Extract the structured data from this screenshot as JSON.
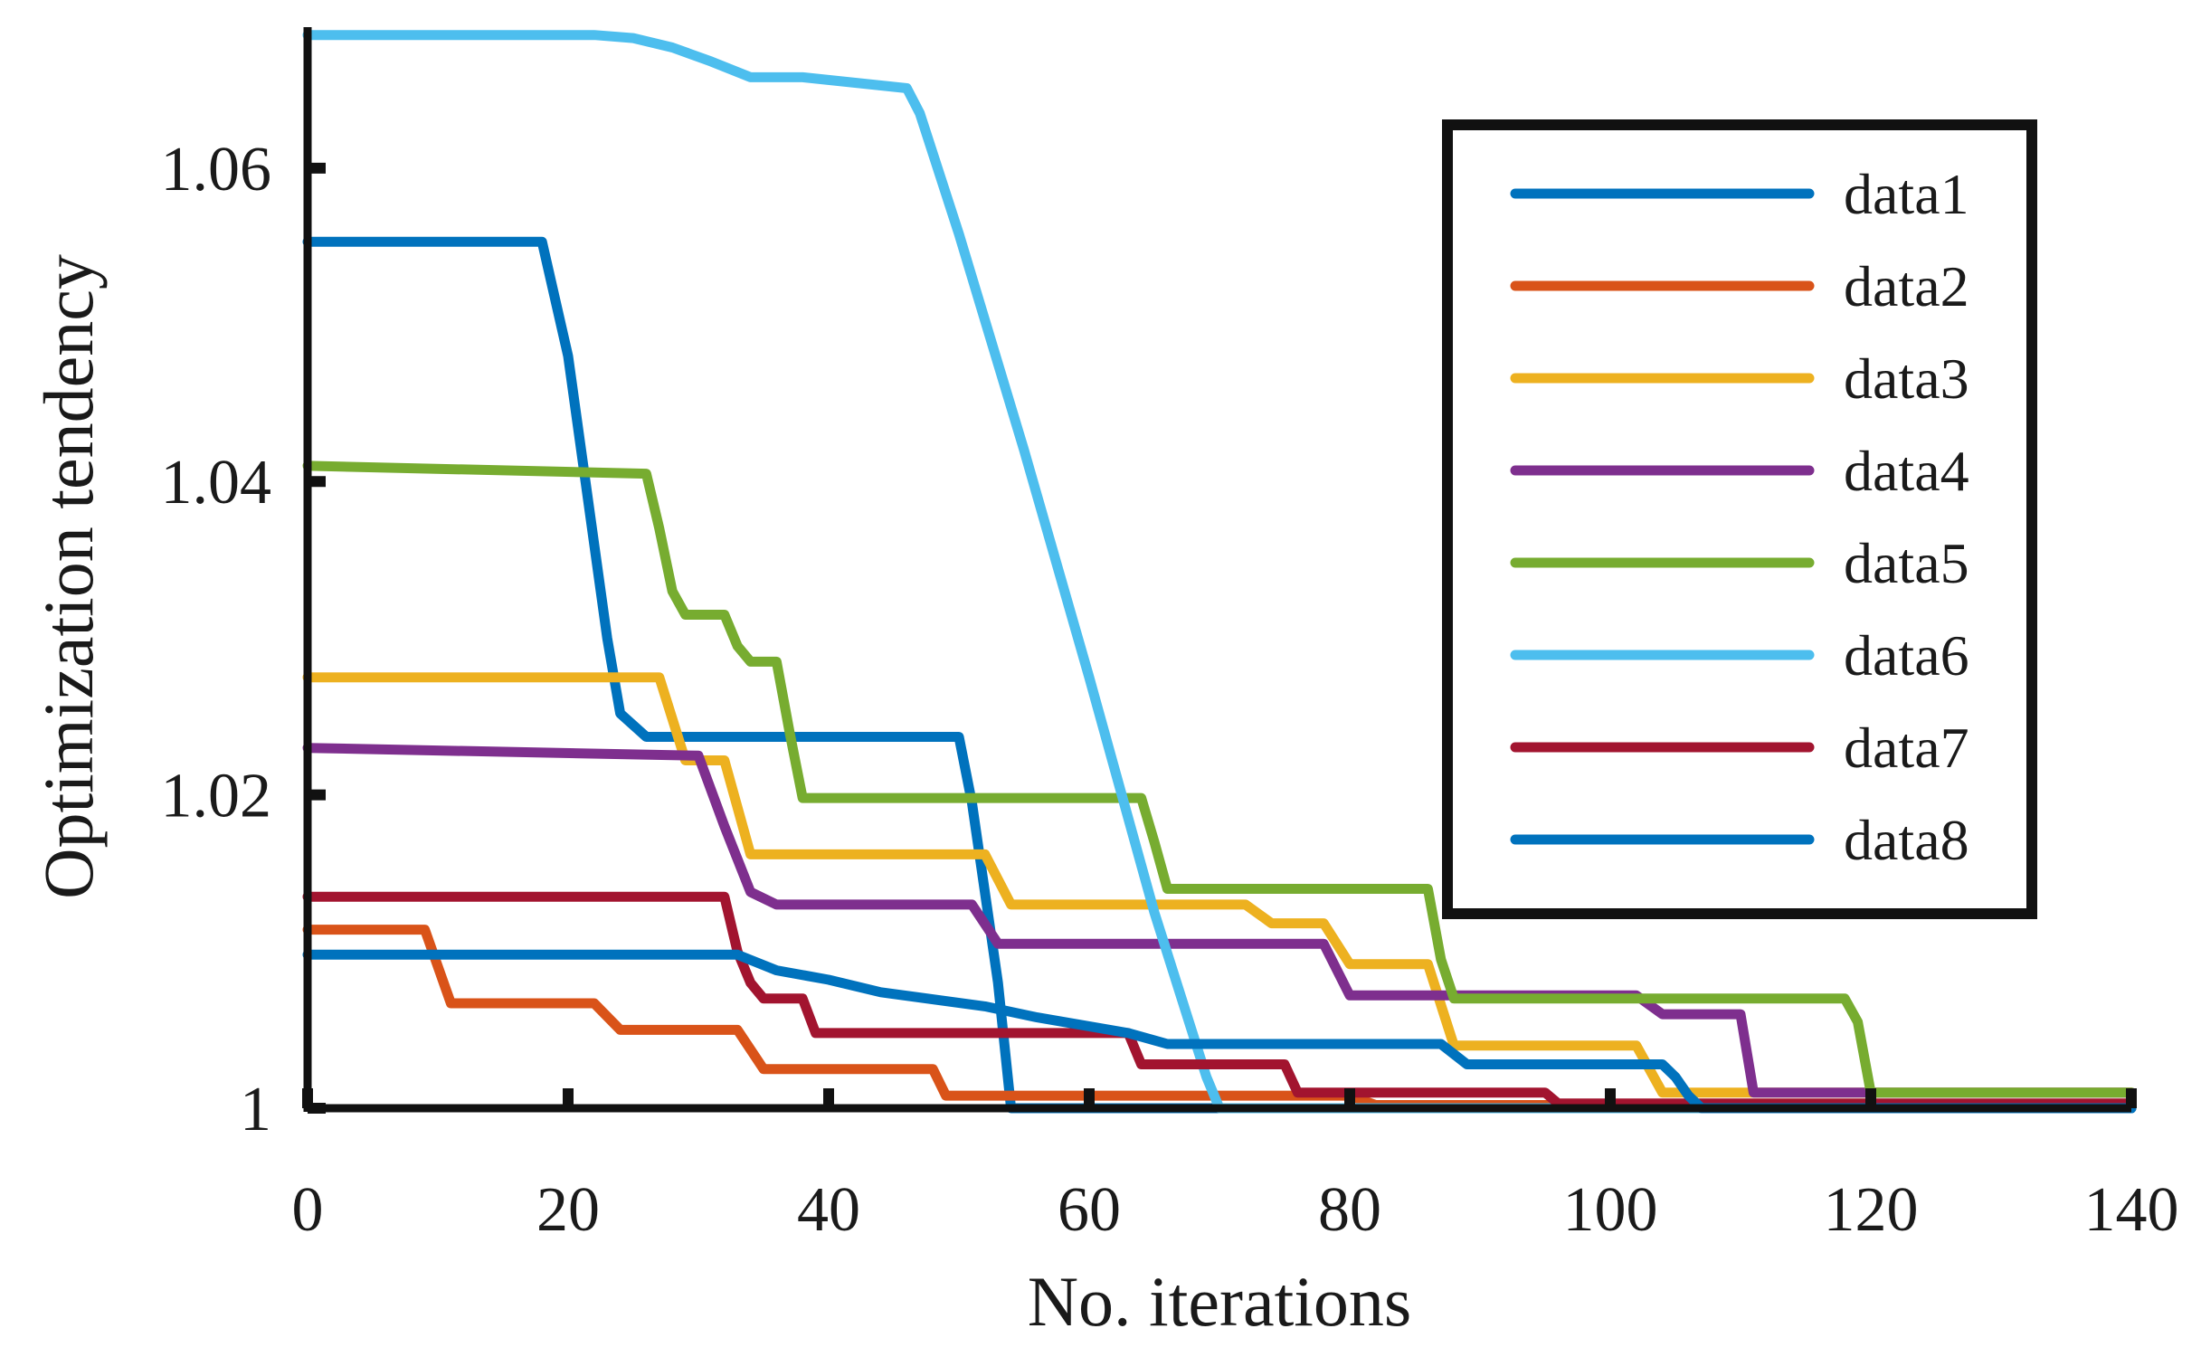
{
  "chart_data": {
    "type": "line",
    "title": "",
    "xlabel": "No. iterations",
    "ylabel": "Optimization tendency",
    "xlim": [
      0,
      140
    ],
    "ylim": [
      1.0,
      1.069
    ],
    "xticks": [
      0,
      20,
      40,
      60,
      80,
      100,
      120,
      140
    ],
    "xtick_labels": [
      "0",
      "20",
      "40",
      "60",
      "80",
      "100",
      "120",
      "140"
    ],
    "yticks": [
      1.0,
      1.02,
      1.04,
      1.06
    ],
    "ytick_labels": [
      "1",
      "1.02",
      "1.04",
      "1.06"
    ],
    "grid": false,
    "legend_position": "top-right",
    "series": [
      {
        "name": "data1",
        "color": "#0072BD",
        "x": [
          0,
          18,
          20,
          22,
          23,
          24,
          26,
          50,
          51,
          53,
          54,
          140
        ],
        "y": [
          1.0553,
          1.0553,
          1.048,
          1.036,
          1.03,
          1.0252,
          1.0237,
          1.0237,
          1.0195,
          1.008,
          1.0,
          1.0
        ]
      },
      {
        "name": "data2",
        "color": "#D95319",
        "x": [
          0,
          9,
          11,
          22,
          24,
          33,
          35,
          48,
          49,
          80,
          82,
          110,
          140
        ],
        "y": [
          1.0114,
          1.0114,
          1.0067,
          1.0067,
          1.005,
          1.005,
          1.0025,
          1.0025,
          1.0008,
          1.0008,
          1.0002,
          1.0002,
          1.0
        ]
      },
      {
        "name": "data3",
        "color": "#EDB120",
        "x": [
          0,
          27,
          29,
          32,
          34,
          52,
          54,
          72,
          74,
          78,
          80,
          86,
          88,
          102,
          104,
          140
        ],
        "y": [
          1.0275,
          1.0275,
          1.0222,
          1.0222,
          1.0162,
          1.0162,
          1.013,
          1.013,
          1.0118,
          1.0118,
          1.0092,
          1.0092,
          1.004,
          1.004,
          1.001,
          1.001
        ]
      },
      {
        "name": "data4",
        "color": "#7E2F8E",
        "x": [
          0,
          30,
          32,
          34,
          36,
          51,
          53,
          78,
          80,
          102,
          104,
          110,
          111,
          140
        ],
        "y": [
          1.023,
          1.0225,
          1.018,
          1.0138,
          1.013,
          1.013,
          1.0105,
          1.0105,
          1.0072,
          1.0072,
          1.006,
          1.006,
          1.001,
          1.001
        ]
      },
      {
        "name": "data5",
        "color": "#77AC30",
        "x": [
          0,
          26,
          27,
          28,
          29,
          32,
          33,
          34,
          36,
          37,
          38,
          64,
          65,
          66,
          86,
          87,
          88,
          118,
          119,
          120,
          140
        ],
        "y": [
          1.041,
          1.0405,
          1.037,
          1.033,
          1.0315,
          1.0315,
          1.0295,
          1.0285,
          1.0285,
          1.024,
          1.0198,
          1.0198,
          1.017,
          1.014,
          1.014,
          1.0095,
          1.007,
          1.007,
          1.0055,
          1.001,
          1.001
        ]
      },
      {
        "name": "data6",
        "color": "#4DBEEE",
        "x": [
          0,
          22,
          25,
          28,
          31,
          34,
          38,
          46,
          47,
          50,
          55,
          60,
          65,
          69,
          70,
          140
        ],
        "y": [
          1.0685,
          1.0685,
          1.0683,
          1.0677,
          1.0668,
          1.0658,
          1.0658,
          1.0651,
          1.0635,
          1.0558,
          1.042,
          1.0275,
          1.0125,
          1.002,
          1.0,
          1.0
        ]
      },
      {
        "name": "data7",
        "color": "#A2142F",
        "x": [
          0,
          32,
          33,
          34,
          35,
          38,
          39,
          63,
          64,
          75,
          76,
          95,
          96,
          140
        ],
        "y": [
          1.0135,
          1.0135,
          1.01,
          1.008,
          1.007,
          1.007,
          1.0048,
          1.0048,
          1.0028,
          1.0028,
          1.001,
          1.001,
          1.0003,
          1.0003
        ]
      },
      {
        "name": "data8",
        "color": "#0072BD",
        "x": [
          0,
          33,
          36,
          40,
          44,
          52,
          56,
          63,
          66,
          87,
          89,
          104,
          105,
          106,
          107,
          140
        ],
        "y": [
          1.0098,
          1.0098,
          1.0088,
          1.0082,
          1.0074,
          1.0065,
          1.0058,
          1.0048,
          1.0041,
          1.0041,
          1.0028,
          1.0028,
          1.002,
          1.0008,
          1.0,
          1.0
        ]
      }
    ]
  }
}
